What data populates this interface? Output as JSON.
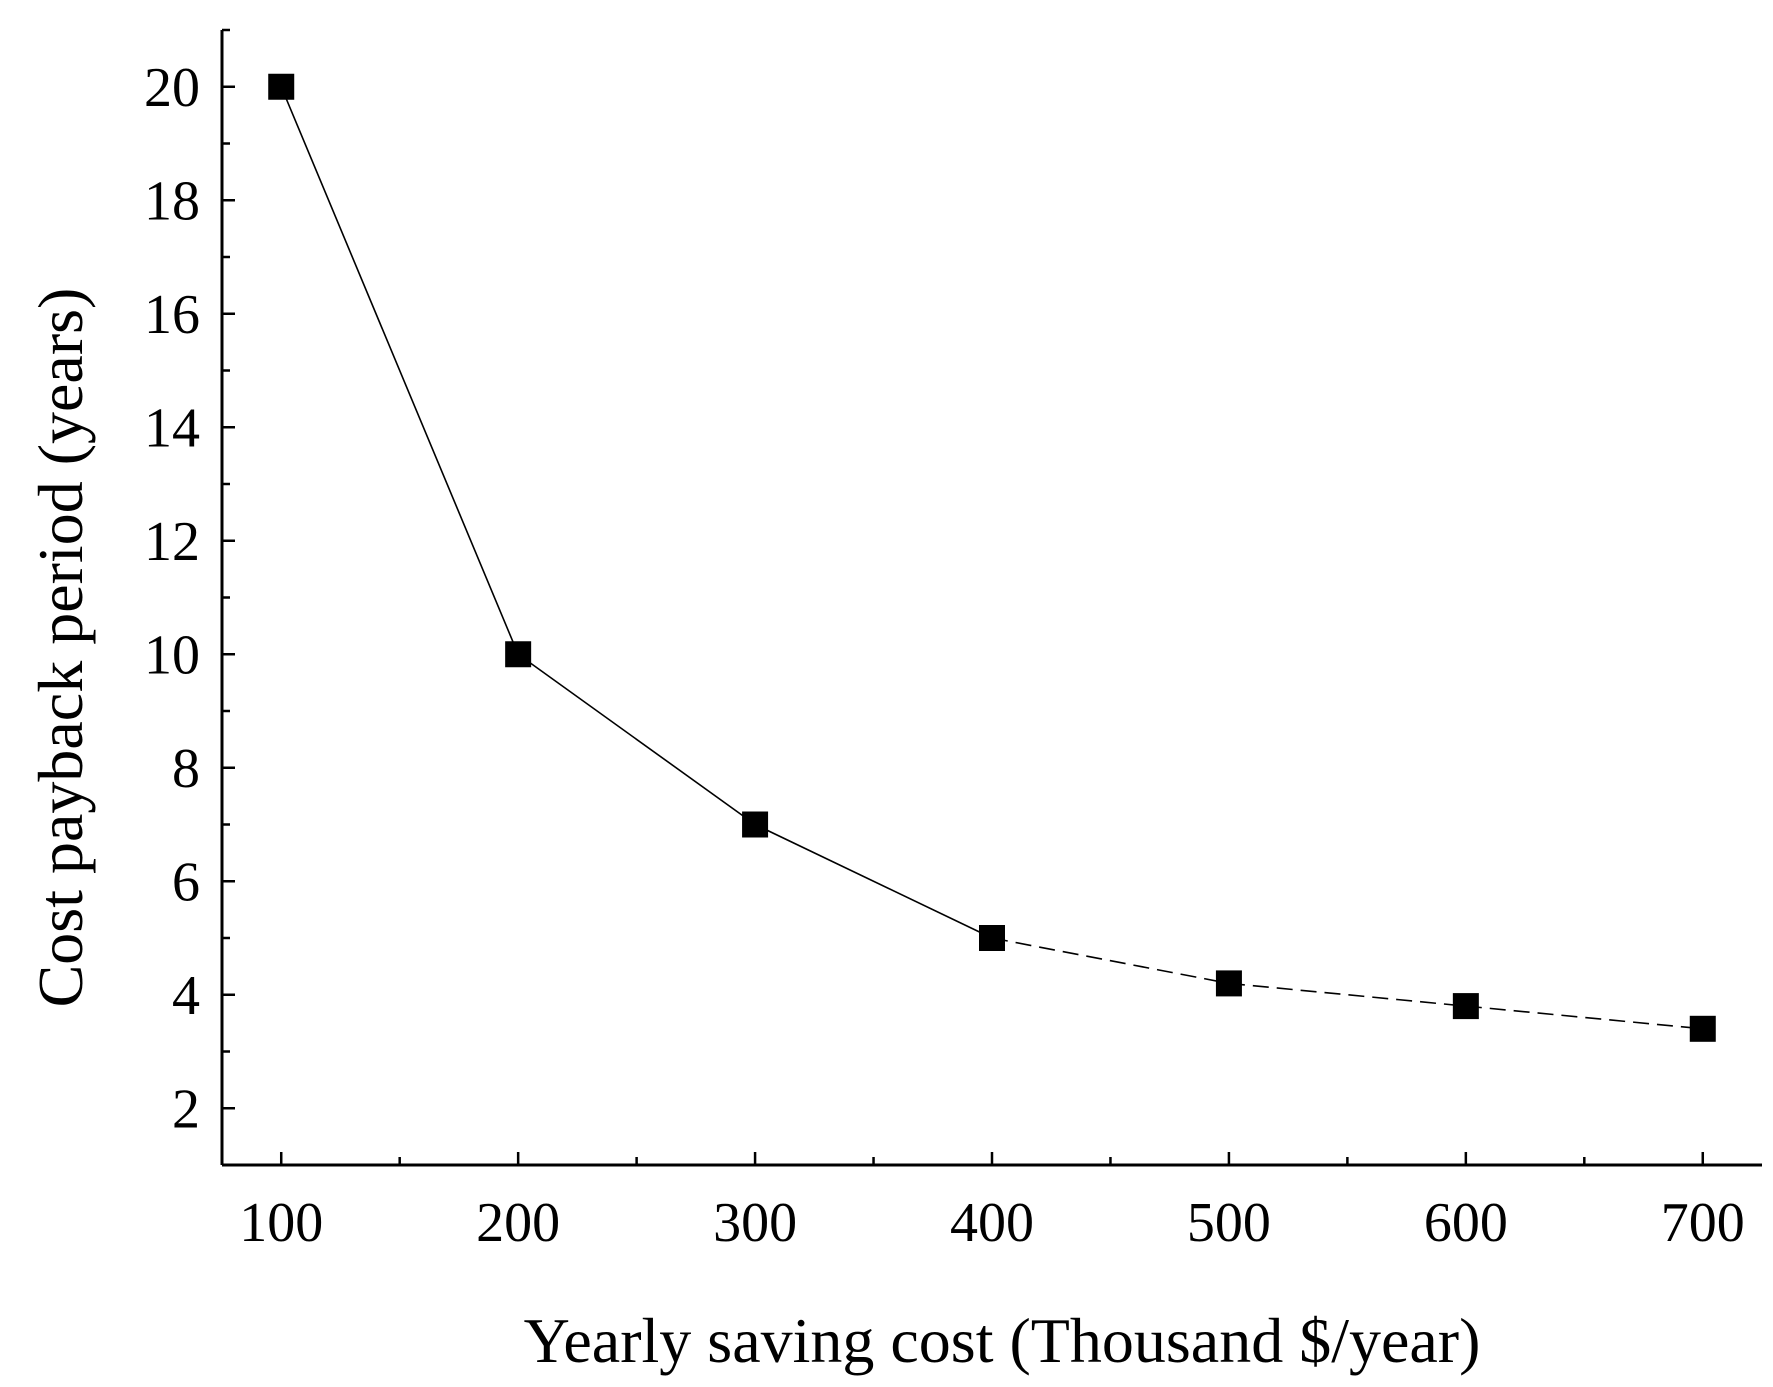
{
  "chart_data": {
    "type": "line",
    "title": "",
    "xlabel": "Yearly saving cost (Thousand $/year)",
    "ylabel": "Cost payback period (years)",
    "xlim": [
      75,
      725
    ],
    "ylim": [
      1,
      21
    ],
    "xticks": [
      100,
      200,
      300,
      400,
      500,
      600,
      700
    ],
    "yticks": [
      2,
      4,
      6,
      8,
      10,
      12,
      14,
      16,
      18,
      20
    ],
    "xtick_labels": [
      "100",
      "200",
      "300",
      "400",
      "500",
      "600",
      "700"
    ],
    "ytick_labels": [
      "2",
      "4",
      "6",
      "8",
      "10",
      "12",
      "14",
      "16",
      "18",
      "20"
    ],
    "grid": false,
    "series": [
      {
        "name": "Cost payback period",
        "marker": "square",
        "color": "#000000",
        "x": [
          100,
          200,
          300,
          400,
          500,
          600,
          700
        ],
        "y": [
          20,
          10,
          7,
          5,
          4.2,
          3.8,
          3.4
        ]
      }
    ]
  }
}
